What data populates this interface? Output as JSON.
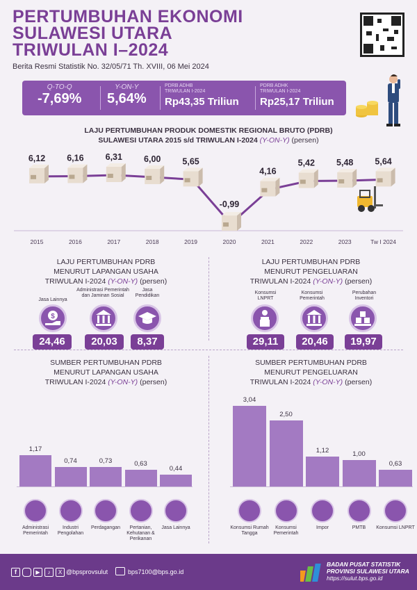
{
  "header": {
    "title_line1": "PERTUMBUHAN EKONOMI",
    "title_line2": "SULAWESI UTARA",
    "title_line3": "TRIWULAN I–2024",
    "subtitle": "Berita Resmi Statistik No. 32/05/71 Th. XVIII, 06 Mei 2024"
  },
  "kpis": {
    "qtoq_label": "Q-TO-Q",
    "qtoq_value": "-7,69%",
    "yony_label": "Y-ON-Y",
    "yony_value": "5,64%",
    "adhb_label1": "PDRB ADHB",
    "adhb_label2": "TRIWULAN I-2024",
    "adhb_value": "Rp43,35 Triliun",
    "adhk_label1": "PDRB ADHK",
    "adhk_label2": "TRIWULAN I-2024",
    "adhk_value": "Rp25,17 Triliun"
  },
  "growth_chart": {
    "title_line1": "LAJU PERTUMBUHAN PRODUK DOMESTIK REGIONAL BRUTO (PDRB)",
    "title_line2": "SULAWESI UTARA 2015 s/d TRIWULAN I-2024",
    "title_italic": "(Y-ON-Y)",
    "title_unit": "(persen)"
  },
  "chart_data": [
    {
      "type": "line",
      "title": "LAJU PERTUMBUHAN PRODUK DOMESTIK REGIONAL BRUTO (PDRB) SULAWESI UTARA 2015 s/d TRIWULAN I-2024 (Y-ON-Y) (persen)",
      "x": [
        "2015",
        "2016",
        "2017",
        "2018",
        "2019",
        "2020",
        "2021",
        "2022",
        "2023",
        "Tw I 2024"
      ],
      "values": [
        6.12,
        6.16,
        6.31,
        6.0,
        5.65,
        -0.99,
        4.16,
        5.42,
        5.48,
        5.64
      ],
      "labels": [
        "6,12",
        "6,16",
        "6,31",
        "6,00",
        "5,65",
        "-0,99",
        "4,16",
        "5,42",
        "5,48",
        "5,64"
      ]
    },
    {
      "type": "bar",
      "title": "SUMBER PERTUMBUHAN PDRB MENURUT LAPANGAN USAHA TRIWULAN I-2024 (Y-ON-Y) (persen)",
      "categories": [
        "Administrasi Pemerintah",
        "Industri Pengolahan",
        "Perdagangan",
        "Pertanian, Kehutanan & Perikanan",
        "Jasa Lainnya"
      ],
      "values": [
        1.17,
        0.74,
        0.73,
        0.63,
        0.44
      ],
      "labels": [
        "1,17",
        "0,74",
        "0,73",
        "0,63",
        "0,44"
      ]
    },
    {
      "type": "bar",
      "title": "SUMBER PERTUMBUHAN PDRB MENURUT PENGELUARAN TRIWULAN I-2024 (Y-ON-Y) (persen)",
      "categories": [
        "Konsumsi Rumah Tangga",
        "Konsumsi Pemerintah",
        "Impor",
        "PMTB",
        "Konsumsi LNPRT"
      ],
      "values": [
        3.04,
        2.5,
        1.12,
        1.0,
        0.63
      ],
      "labels": [
        "3,04",
        "2,50",
        "1,12",
        "1,00",
        "0,63"
      ]
    }
  ],
  "lap_usaha": {
    "title_line1": "LAJU PERTUMBUHAN PDRB",
    "title_line2": "MENURUT LAPANGAN USAHA",
    "title_line3": "TRIWULAN I-2024",
    "title_italic": "(Y-ON-Y)",
    "title_unit": "(persen)",
    "items": [
      {
        "label": "Jasa Lainnya",
        "value": "24,46",
        "icon": "money-hand-icon"
      },
      {
        "label": "Administrasi Pemerintah dan Jaminan Sosial",
        "value": "20,03",
        "icon": "government-building-icon"
      },
      {
        "label": "Jasa Pendidikan",
        "value": "8,37",
        "icon": "graduation-cap-icon"
      }
    ]
  },
  "pengeluaran": {
    "title_line1": "LAJU PERTUMBUHAN PDRB",
    "title_line2": "MENURUT PENGELUARAN",
    "title_line3": "TRIWULAN I-2024",
    "title_italic": "(Y-ON-Y)",
    "title_unit": "(persen)",
    "items": [
      {
        "label": "Konsumsi LNPRT",
        "value": "29,11",
        "icon": "person-podium-icon"
      },
      {
        "label": "Konsumsi Pemerintah",
        "value": "20,46",
        "icon": "government-building-icon"
      },
      {
        "label": "Perubahan Inventori",
        "value": "19,97",
        "icon": "inventory-boxes-icon"
      }
    ]
  },
  "sumber_lap": {
    "title_line1": "SUMBER PERTUMBUHAN PDRB",
    "title_line2": "MENURUT LAPANGAN USAHA",
    "title_line3": "TRIWULAN I-2024",
    "title_italic": "(Y-ON-Y)",
    "title_unit": "(persen)"
  },
  "sumber_peng": {
    "title_line1": "SUMBER PERTUMBUHAN PDRB",
    "title_line2": "MENURUT PENGELUARAN",
    "title_line3": "TRIWULAN I-2024",
    "title_italic": "(Y-ON-Y)",
    "title_unit": "(persen)"
  },
  "footer": {
    "social_handle": "@bpsprovsulut",
    "email": "bps7100@bps.go.id",
    "org_line1": "BADAN PUSAT STATISTIK",
    "org_line2": "PROVINSI SULAWESI UTARA",
    "website": "https://sulut.bps.go.id"
  },
  "colors": {
    "purple_dark": "#6b3a8a",
    "purple": "#8a55ad",
    "bar": "#a37ac2",
    "title": "#7a3f96"
  }
}
